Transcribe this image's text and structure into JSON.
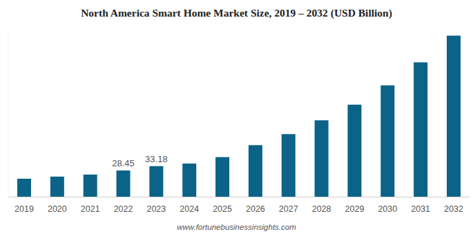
{
  "chart_data": {
    "type": "bar",
    "title": "North America Smart Home Market Size, 2019 – 2032 (USD Billion)",
    "categories": [
      "2019",
      "2020",
      "2021",
      "2022",
      "2023",
      "2024",
      "2025",
      "2026",
      "2027",
      "2028",
      "2029",
      "2030",
      "2031",
      "2032"
    ],
    "values": [
      19.5,
      21.8,
      24.0,
      28.45,
      33.18,
      36.0,
      43.0,
      56.0,
      68.0,
      83.0,
      100.0,
      121.0,
      146.0,
      175.0
    ],
    "value_labels": [
      null,
      null,
      null,
      "28.45",
      "33.18",
      null,
      null,
      null,
      null,
      null,
      null,
      null,
      null,
      null
    ],
    "data_labels": true,
    "color": "#0b6388",
    "ylim": [
      0,
      180
    ],
    "tick_labels": "x",
    "grid": false,
    "source": "www.fortunebusinessinsights.com"
  }
}
